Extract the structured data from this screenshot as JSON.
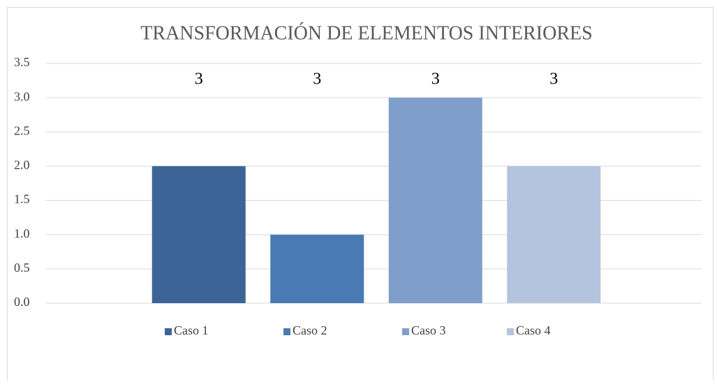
{
  "chart_data": {
    "type": "bar",
    "title": "TRANSFORMACIÓN DE ELEMENTOS INTERIORES",
    "categories": [
      null
    ],
    "series": [
      {
        "name": "Caso 1",
        "color": "#3c6496",
        "values": [
          2
        ]
      },
      {
        "name": "Caso 2",
        "color": "#4a7ab4",
        "values": [
          1
        ]
      },
      {
        "name": "Caso 3",
        "color": "#7f9fca",
        "values": [
          3
        ]
      },
      {
        "name": "Caso 4",
        "color": "#b4c4de",
        "values": [
          2
        ]
      }
    ],
    "annotations": [
      "3",
      "3",
      "3",
      "3"
    ],
    "ylim": [
      0,
      3.5
    ],
    "yticks": [
      {
        "value": 0,
        "label": "0.0"
      },
      0.5,
      {
        "value": 1,
        "label": "1.0"
      },
      1.5,
      {
        "value": 2,
        "label": "2.0"
      },
      2.5,
      {
        "value": 3,
        "label": "3.0"
      },
      3.5
    ],
    "grid": true,
    "legend": "bottom"
  }
}
